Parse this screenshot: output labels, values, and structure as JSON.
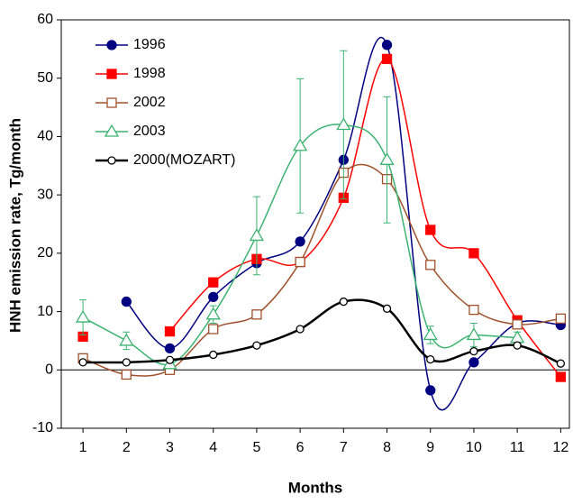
{
  "chart_data": {
    "type": "line",
    "x_label": "Months",
    "y_label": "HNH emission rate,  Tg/month",
    "x": [
      1,
      2,
      3,
      4,
      5,
      6,
      7,
      8,
      9,
      10,
      11,
      12
    ],
    "xlim": [
      0.5,
      12.2
    ],
    "xticks": [
      1,
      2,
      3,
      4,
      5,
      6,
      7,
      8,
      9,
      10,
      11,
      12
    ],
    "ylim": [
      -10,
      60
    ],
    "yticks": [
      -10,
      0,
      10,
      20,
      30,
      40,
      50,
      60
    ],
    "legend": "top-left",
    "smooth": true,
    "series": [
      {
        "name": "1996",
        "color": "#000080",
        "marker": "circle",
        "filled": true,
        "values": [
          null,
          11.7,
          3.7,
          12.5,
          18.3,
          22,
          36,
          55.7,
          -3.5,
          1.3,
          8,
          7.7
        ]
      },
      {
        "name": "1998",
        "color": "#ff0000",
        "marker": "square",
        "filled": true,
        "values": [
          5.7,
          null,
          6.6,
          15,
          19,
          18.5,
          29.5,
          53.3,
          24,
          20,
          8.5,
          -1.2
        ]
      },
      {
        "name": "2002",
        "color": "#a0522d",
        "marker": "square",
        "filled": false,
        "values": [
          2,
          -0.8,
          0,
          7,
          9.5,
          18.5,
          33.8,
          32.7,
          18,
          10.3,
          7.8,
          8.8
        ]
      },
      {
        "name": "2003",
        "color": "#3cb371",
        "marker": "triangle",
        "filled": false,
        "values": [
          9,
          5,
          1,
          9.5,
          23,
          38.4,
          42,
          36,
          6,
          6,
          5.5,
          null
        ],
        "errors": [
          3,
          1.5,
          0.5,
          1.5,
          6.7,
          11.5,
          12.7,
          10.8,
          1.5,
          2,
          1,
          null
        ]
      },
      {
        "name": "2000(MOZART)",
        "color": "#000000",
        "marker": "circle",
        "filled": false,
        "values": [
          1.3,
          1.3,
          1.7,
          2.6,
          4.2,
          7,
          11.7,
          10.5,
          1.8,
          3.2,
          4.2,
          1.1
        ]
      }
    ]
  }
}
